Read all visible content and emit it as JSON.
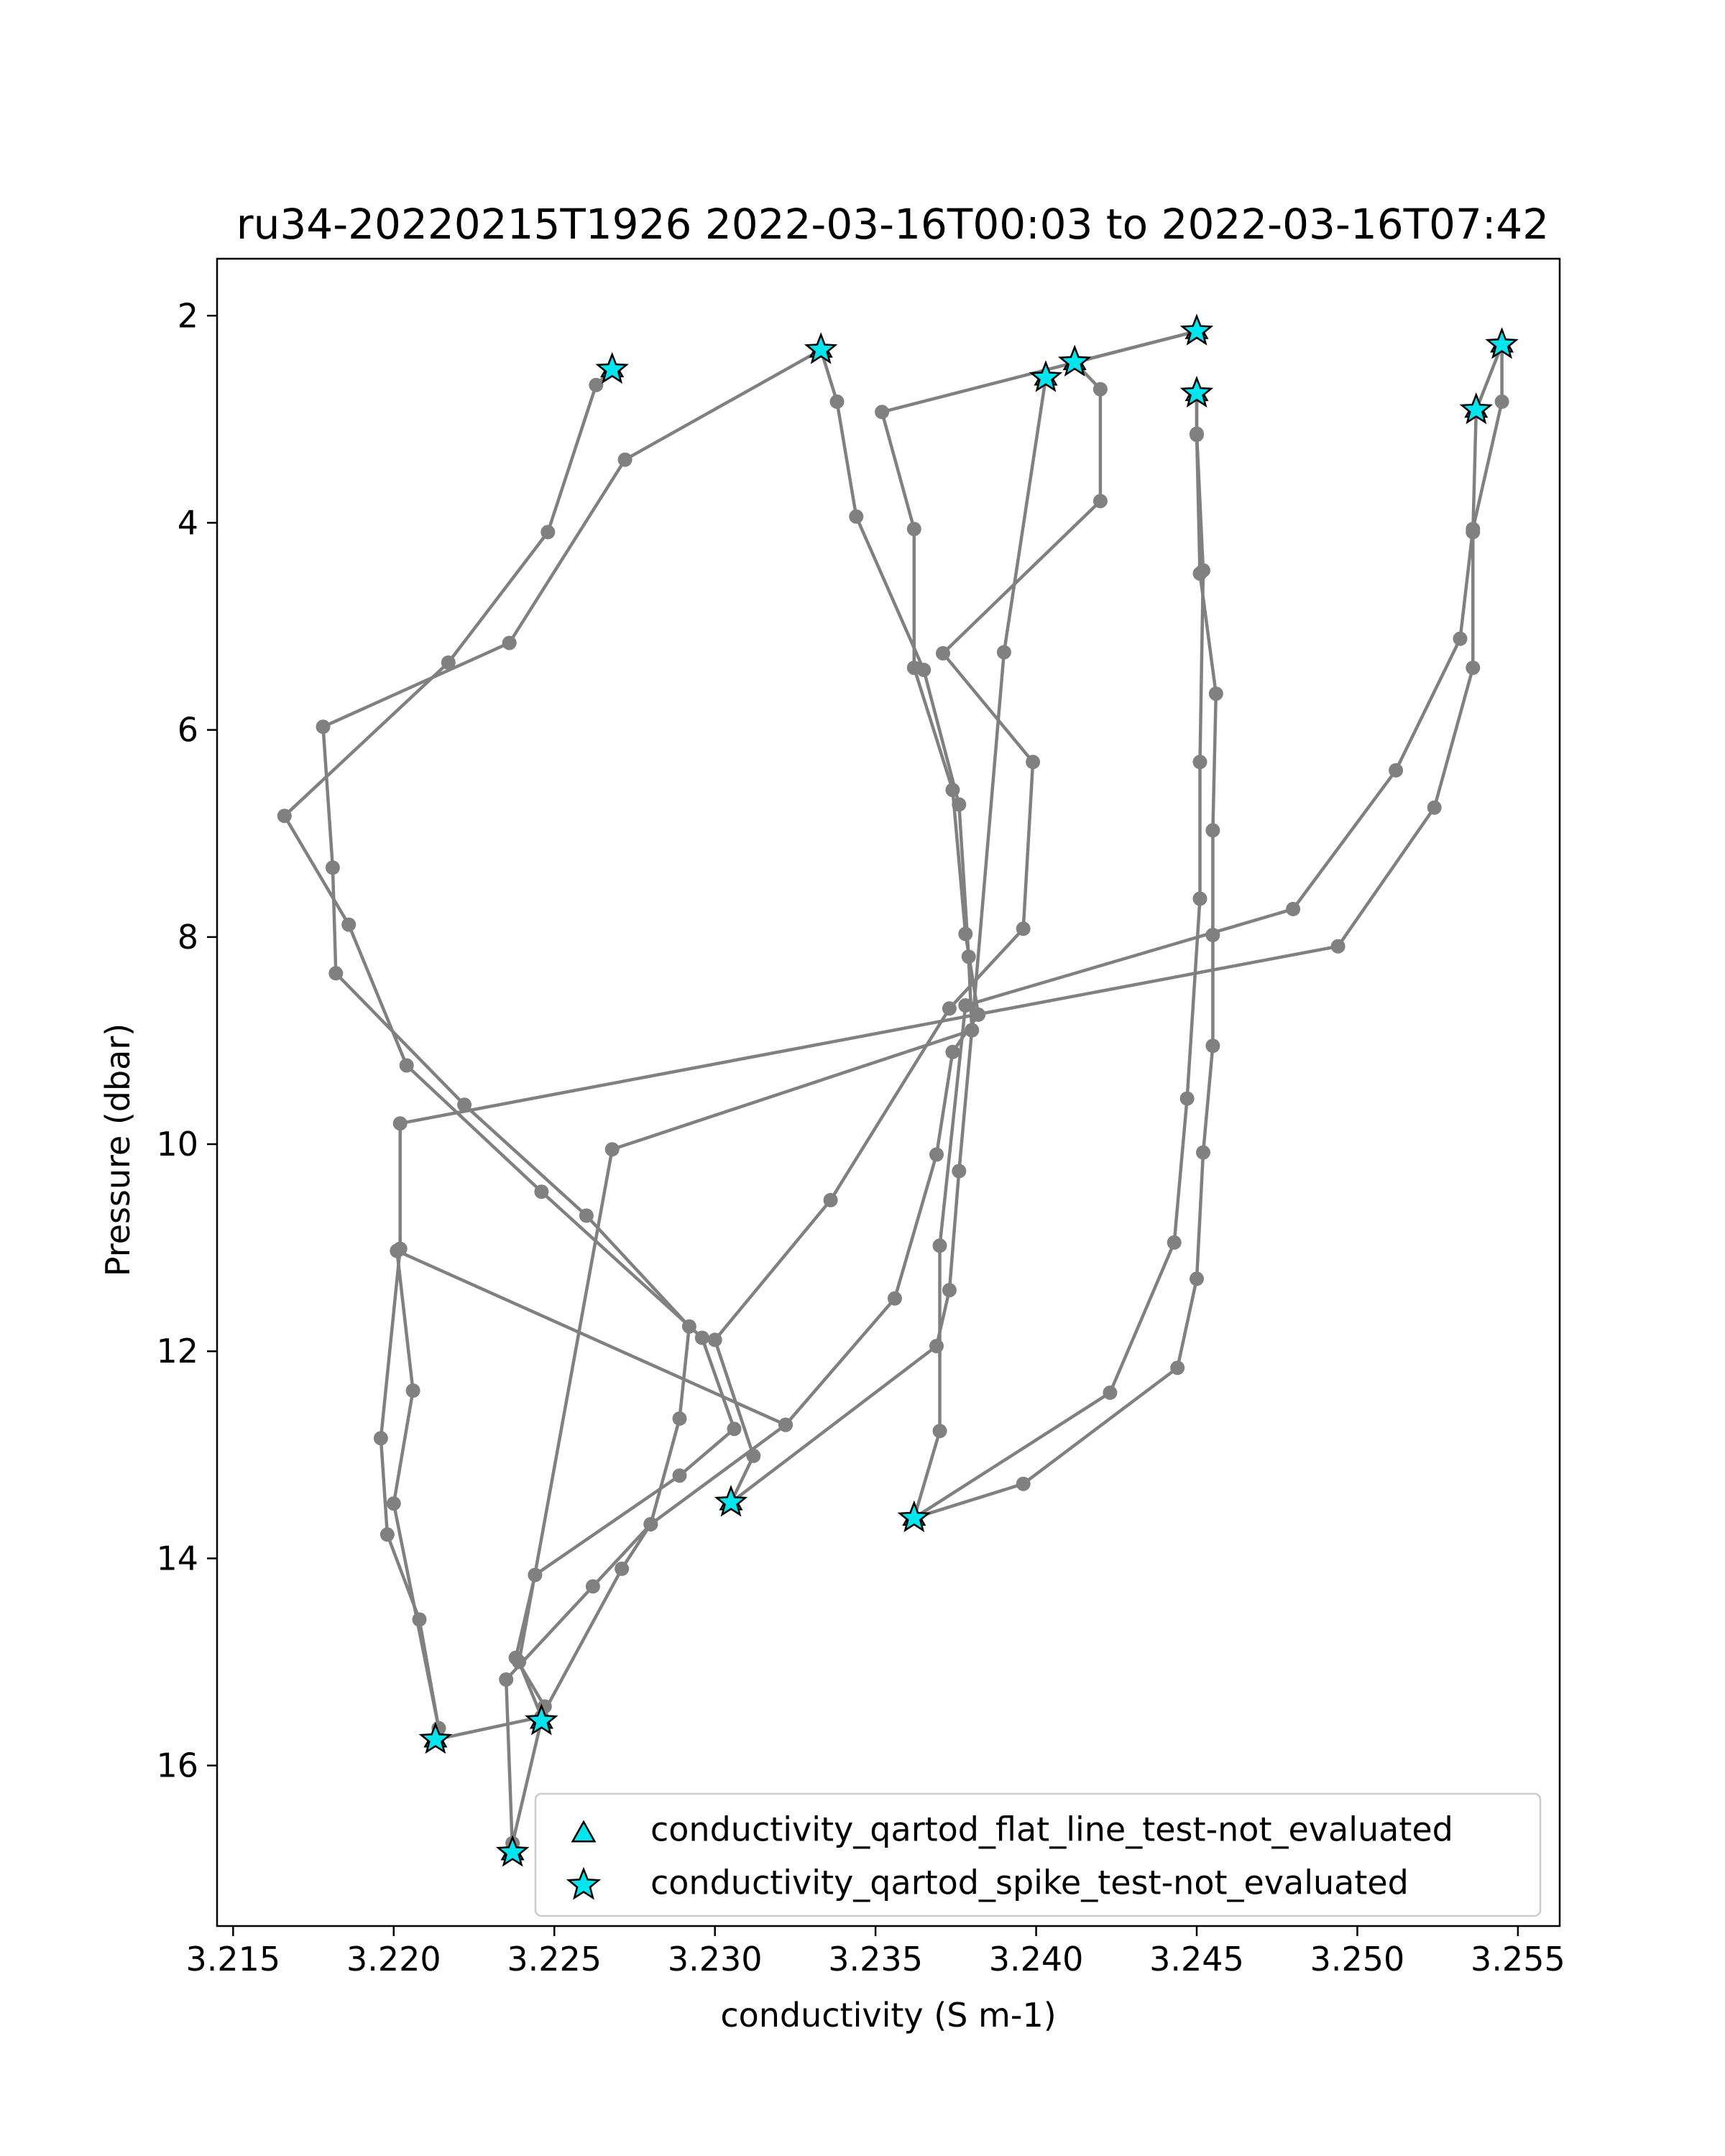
{
  "chart_data": {
    "type": "line",
    "title": "ru34-20220215T1926 2022-03-16T00:03 to 2022-03-16T07:42",
    "xlabel": "conductivity (S m-1)",
    "ylabel": "Pressure (dbar)",
    "xlim": [
      3.2145,
      3.2563
    ],
    "ylim": [
      17.55,
      1.45
    ],
    "y_inverted": true,
    "xticks": [
      3.215,
      3.22,
      3.225,
      3.23,
      3.235,
      3.24,
      3.245,
      3.25,
      3.255
    ],
    "xtick_labels": [
      "3.215",
      "3.220",
      "3.225",
      "3.230",
      "3.235",
      "3.240",
      "3.245",
      "3.250",
      "3.255"
    ],
    "yticks": [
      2,
      4,
      6,
      8,
      10,
      12,
      14,
      16
    ],
    "ytick_labels": [
      "2",
      "4",
      "6",
      "8",
      "10",
      "12",
      "14",
      "16"
    ],
    "grid": false,
    "legend_position": "bottom-right",
    "colors": {
      "profile_line": "#808080",
      "flag_fill": "#00e5ee",
      "flag_edge": "#000000"
    },
    "legend": [
      {
        "label": "conductivity_qartod_flat_line_test-not_evaluated",
        "marker": "triangle"
      },
      {
        "label": "conductivity_qartod_spike_test-not_evaluated",
        "marker": "star"
      }
    ],
    "series": [
      {
        "points": [
          [
            3.2268,
            2.52
          ],
          [
            3.2263,
            2.67
          ],
          [
            3.2248,
            4.09
          ],
          [
            3.2217,
            5.35
          ],
          [
            3.2166,
            6.83
          ],
          [
            3.2186,
            7.88
          ],
          [
            3.2204,
            9.24
          ],
          [
            3.2246,
            10.46
          ],
          [
            3.2296,
            11.87
          ],
          [
            3.2306,
            12.75
          ],
          [
            3.2289,
            13.2
          ],
          [
            3.2244,
            14.16
          ],
          [
            3.2238,
            14.96
          ],
          [
            3.2247,
            15.43
          ],
          [
            3.2237,
            16.75
          ],
          [
            3.2237,
            16.84
          ]
        ]
      },
      {
        "points": [
          [
            3.2237,
            16.84
          ],
          [
            3.2235,
            15.17
          ],
          [
            3.2262,
            14.27
          ],
          [
            3.228,
            13.67
          ],
          [
            3.2289,
            12.65
          ],
          [
            3.2292,
            11.76
          ],
          [
            3.226,
            10.69
          ],
          [
            3.2222,
            9.62
          ],
          [
            3.2182,
            8.35
          ],
          [
            3.2181,
            7.33
          ],
          [
            3.2178,
            5.97
          ],
          [
            3.2236,
            5.16
          ],
          [
            3.2272,
            3.39
          ],
          [
            3.2333,
            2.33
          ]
        ]
      },
      {
        "points": [
          [
            3.2333,
            2.33
          ],
          [
            3.2338,
            2.83
          ],
          [
            3.2344,
            3.94
          ],
          [
            3.2365,
            5.42
          ],
          [
            3.2376,
            6.72
          ],
          [
            3.2379,
            8.19
          ],
          [
            3.238,
            8.9
          ],
          [
            3.2376,
            10.26
          ],
          [
            3.2373,
            11.41
          ],
          [
            3.2369,
            11.95
          ],
          [
            3.2305,
            13.46
          ]
        ]
      },
      {
        "points": [
          [
            3.2305,
            13.46
          ],
          [
            3.2312,
            13.01
          ],
          [
            3.23,
            11.89
          ],
          [
            3.2336,
            10.54
          ],
          [
            3.2373,
            8.69
          ],
          [
            3.2396,
            7.92
          ],
          [
            3.2399,
            6.31
          ],
          [
            3.2371,
            5.26
          ],
          [
            3.242,
            3.79
          ],
          [
            3.242,
            2.71
          ],
          [
            3.2412,
            2.45
          ],
          [
            3.245,
            2.15
          ]
        ]
      },
      {
        "points": [
          [
            3.245,
            2.15
          ],
          [
            3.2352,
            2.93
          ],
          [
            3.2362,
            4.06
          ],
          [
            3.2362,
            5.4
          ],
          [
            3.2374,
            6.58
          ],
          [
            3.2378,
            7.97
          ],
          [
            3.2382,
            8.75
          ],
          [
            3.2374,
            9.11
          ],
          [
            3.2369,
            10.1
          ],
          [
            3.2356,
            11.49
          ],
          [
            3.2322,
            12.71
          ]
        ]
      },
      {
        "points": [
          [
            3.2322,
            12.71
          ],
          [
            3.228,
            13.67
          ],
          [
            3.2271,
            14.1
          ],
          [
            3.2246,
            15.53
          ],
          [
            3.2213,
            15.75
          ]
        ]
      },
      {
        "points": [
          [
            3.2213,
            15.75
          ],
          [
            3.2214,
            15.64
          ],
          [
            3.2208,
            14.59
          ],
          [
            3.2198,
            13.77
          ],
          [
            3.2196,
            12.84
          ],
          [
            3.2202,
            11.01
          ],
          [
            3.2202,
            9.8
          ],
          [
            3.2494,
            8.09
          ],
          [
            3.2524,
            6.75
          ],
          [
            3.2536,
            5.4
          ],
          [
            3.2536,
            4.09
          ],
          [
            3.2537,
            2.91
          ],
          [
            3.2545,
            2.28
          ]
        ]
      },
      {
        "points": [
          [
            3.2545,
            2.28
          ],
          [
            3.2545,
            2.83
          ],
          [
            3.2536,
            4.06
          ],
          [
            3.2532,
            5.12
          ],
          [
            3.2512,
            6.39
          ],
          [
            3.248,
            7.73
          ],
          [
            3.2378,
            8.66
          ],
          [
            3.237,
            10.98
          ],
          [
            3.237,
            12.77
          ],
          [
            3.2362,
            13.61
          ]
        ]
      },
      {
        "points": [
          [
            3.2362,
            13.61
          ],
          [
            3.2396,
            13.28
          ],
          [
            3.2444,
            12.16
          ],
          [
            3.245,
            11.3
          ],
          [
            3.2452,
            10.08
          ],
          [
            3.2455,
            9.05
          ],
          [
            3.2455,
            7.98
          ],
          [
            3.2455,
            6.97
          ],
          [
            3.2456,
            5.65
          ],
          [
            3.2451,
            4.49
          ],
          [
            3.245,
            3.15
          ],
          [
            3.245,
            2.75
          ]
        ]
      },
      {
        "points": [
          [
            3.245,
            2.75
          ],
          [
            3.245,
            3.14
          ],
          [
            3.2452,
            4.46
          ],
          [
            3.2451,
            6.31
          ],
          [
            3.2451,
            7.63
          ],
          [
            3.2447,
            9.56
          ],
          [
            3.2443,
            10.95
          ],
          [
            3.2423,
            12.4
          ],
          [
            3.2362,
            13.61
          ]
        ]
      },
      {
        "points": [
          [
            3.2322,
            12.71
          ],
          [
            3.2201,
            11.03
          ],
          [
            3.2206,
            12.38
          ],
          [
            3.22,
            13.47
          ],
          [
            3.2214,
            15.64
          ]
        ]
      },
      {
        "points": [
          [
            3.2246,
            15.53
          ],
          [
            3.2239,
            15.0
          ],
          [
            3.2268,
            10.05
          ],
          [
            3.238,
            8.9
          ],
          [
            3.239,
            5.25
          ],
          [
            3.2403,
            2.6
          ]
        ]
      }
    ],
    "flag_points": [
      [
        3.2268,
        2.52
      ],
      [
        3.2333,
        2.33
      ],
      [
        3.2403,
        2.6
      ],
      [
        3.2412,
        2.45
      ],
      [
        3.245,
        2.15
      ],
      [
        3.245,
        2.75
      ],
      [
        3.2545,
        2.28
      ],
      [
        3.2537,
        2.91
      ],
      [
        3.2305,
        13.46
      ],
      [
        3.2362,
        13.61
      ],
      [
        3.2213,
        15.75
      ],
      [
        3.2246,
        15.57
      ],
      [
        3.2237,
        16.84
      ]
    ]
  }
}
